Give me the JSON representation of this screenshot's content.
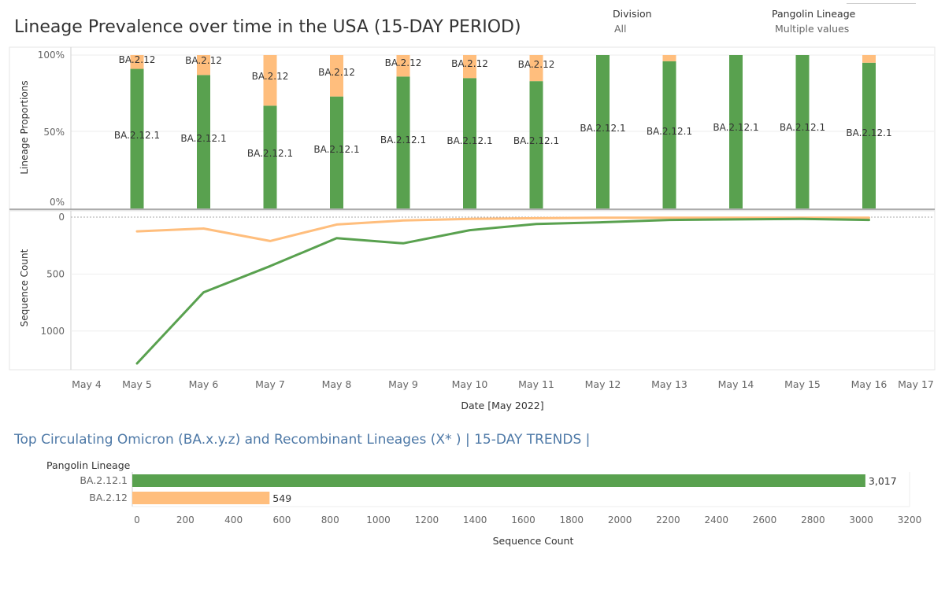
{
  "title": "Lineage Prevalence over time in the USA (15-DAY PERIOD)",
  "filters": [
    {
      "label": "Division",
      "value": "All"
    },
    {
      "label": "Pangolin Lineage",
      "value": "Multiple values"
    }
  ],
  "colors": {
    "ba2121": "#59a14f",
    "ba212": "#ffbe7d",
    "axis": "#999999",
    "grid": "#eeeeee",
    "text": "#333333",
    "section_title": "#4e79a7"
  },
  "section2_title": "Top Circulating Omicron (BA.x.y.z) and Recombinant Lineages (X* )  | 15-DAY TRENDS |",
  "chart_data": [
    {
      "type": "bar",
      "stacked": true,
      "ylabel": "Lineage Proportions",
      "ylim": [
        0,
        1
      ],
      "y_ticks": [
        "100%",
        "50%",
        "0%"
      ],
      "categories": [
        "May 5",
        "May 6",
        "May 7",
        "May 8",
        "May 9",
        "May 10",
        "May 11",
        "May 12",
        "May 13",
        "May 14",
        "May 15",
        "May 16"
      ],
      "series": [
        {
          "name": "BA.2.12.1",
          "values": [
            0.91,
            0.87,
            0.67,
            0.73,
            0.86,
            0.85,
            0.83,
            1.0,
            0.96,
            1.0,
            1.0,
            0.95
          ]
        },
        {
          "name": "BA.2.12",
          "values": [
            0.09,
            0.13,
            0.33,
            0.27,
            0.14,
            0.15,
            0.17,
            0.0,
            0.04,
            0.0,
            0.0,
            0.05
          ]
        }
      ],
      "mark_labels": {
        "BA.2.12.1": "BA.2.12.1",
        "BA.2.12": "BA.2.12"
      }
    },
    {
      "type": "line",
      "ylabel": "Sequence Count",
      "xlabel": "Date [May 2022]",
      "y_inverted": true,
      "ylim": [
        0,
        1340
      ],
      "y_ticks": [
        0,
        500,
        1000
      ],
      "x_ticks": [
        "May 4",
        "May 5",
        "May 6",
        "May 7",
        "May 8",
        "May 9",
        "May 10",
        "May 11",
        "May 12",
        "May 13",
        "May 14",
        "May 15",
        "May 16",
        "May 17"
      ],
      "x_days": [
        5,
        6,
        7,
        8,
        9,
        10,
        11,
        12,
        13,
        14,
        15,
        16
      ],
      "series": [
        {
          "name": "BA.2.12.1",
          "values": [
            1285,
            660,
            430,
            185,
            230,
            115,
            60,
            45,
            25,
            20,
            15,
            25
          ]
        },
        {
          "name": "BA.2.12",
          "values": [
            125,
            100,
            210,
            65,
            30,
            15,
            10,
            5,
            5,
            5,
            5,
            5
          ]
        }
      ]
    },
    {
      "type": "bar",
      "orientation": "horizontal",
      "row_header": "Pangolin Lineage",
      "categories": [
        "BA.2.12.1",
        "BA.2.12"
      ],
      "values": [
        3017,
        549
      ],
      "value_labels": [
        "3,017",
        "549"
      ],
      "xlabel": "Sequence Count",
      "xlim": [
        0,
        3200
      ],
      "x_ticks": [
        "0",
        "200",
        "400",
        "600",
        "800",
        "1000",
        "1200",
        "1400",
        "1600",
        "1800",
        "2000",
        "2200",
        "2400",
        "2600",
        "2800",
        "3000",
        "3200"
      ]
    }
  ]
}
